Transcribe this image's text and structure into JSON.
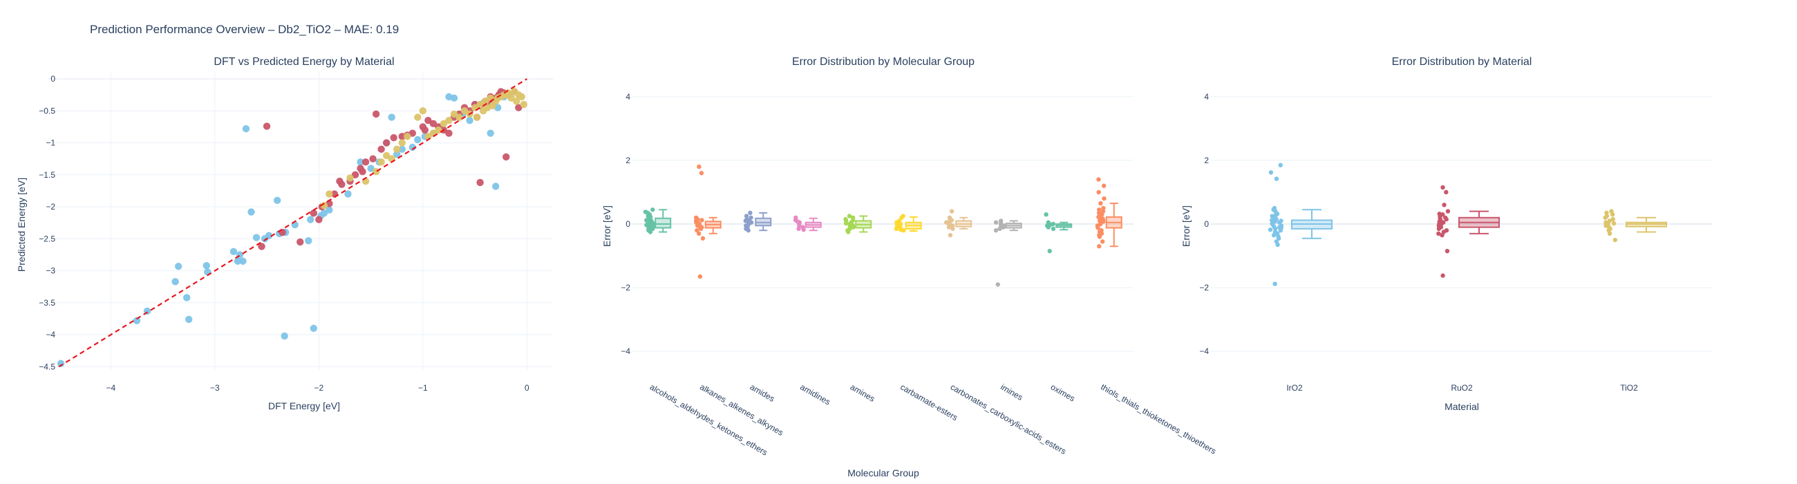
{
  "figure": {
    "title": "Prediction Performance Overview – Db2_TiO2 – MAE: 0.19"
  },
  "colors": {
    "IrO2": "#7ec4e8",
    "RuO2": "#c9566a",
    "TiO2": "#dcc46a",
    "parity_line": "#e8161c",
    "grid": "#ebf0f8",
    "zeroline": "#e4e8ef"
  },
  "chart_data": [
    {
      "type": "scatter",
      "title": "DFT vs Predicted Energy by Material",
      "xlabel": "DFT Energy [eV]",
      "ylabel": "Predicted Energy [eV]",
      "xlim": [
        -4.6,
        0.25
      ],
      "ylim": [
        -4.55,
        0.12
      ],
      "xticks": [
        -4,
        -3,
        -2,
        -1,
        0
      ],
      "xtick_labels": [
        "−4",
        "−3",
        "−2",
        "−1",
        "0"
      ],
      "yticks": [
        0,
        -0.5,
        -1,
        -1.5,
        -2,
        -2.5,
        -3,
        -3.5,
        -4,
        -4.5
      ],
      "ytick_labels": [
        "0",
        "−0.5",
        "−1",
        "−1.5",
        "−2",
        "−2.5",
        "−3",
        "−3.5",
        "−4",
        "−4.5"
      ],
      "grid": true,
      "legend": "none",
      "parity_line": {
        "x": [
          -4.5,
          0
        ],
        "y": [
          -4.5,
          0
        ]
      },
      "series": [
        {
          "material": "IrO2",
          "x": [
            -4.48,
            -3.75,
            -3.65,
            -3.38,
            -3.35,
            -3.27,
            -3.25,
            -3.08,
            -3.07,
            -2.82,
            -2.78,
            -2.76,
            -2.73,
            -2.7,
            -2.65,
            -2.6,
            -2.52,
            -2.48,
            -2.4,
            -2.38,
            -2.33,
            -2.32,
            -2.23,
            -2.1,
            -2.08,
            -2.05,
            -1.98,
            -1.95,
            -1.9,
            -1.72,
            -1.6,
            -1.5,
            -1.42,
            -1.35,
            -1.3,
            -1.25,
            -1.2,
            -1.1,
            -1.05,
            -0.98,
            -0.9,
            -0.82,
            -0.75,
            -0.7,
            -0.62,
            -0.55,
            -0.5,
            -0.42,
            -0.35,
            -0.3,
            -0.28,
            -0.22
          ],
          "y": [
            -4.45,
            -3.78,
            -3.63,
            -3.17,
            -2.93,
            -3.42,
            -3.76,
            -2.92,
            -3.02,
            -2.7,
            -2.85,
            -2.75,
            -2.85,
            -0.78,
            -2.08,
            -2.48,
            -2.5,
            -2.45,
            -1.9,
            -2.42,
            -4.02,
            -2.4,
            -2.28,
            -2.53,
            -2.2,
            -3.9,
            -2.14,
            -2.1,
            -2.05,
            -1.8,
            -1.3,
            -1.4,
            -1.3,
            -1.0,
            -0.6,
            -1.18,
            -1.1,
            -1.07,
            -0.95,
            -0.9,
            -0.85,
            -0.75,
            -0.28,
            -0.3,
            -0.55,
            -0.65,
            -0.4,
            -0.38,
            -0.85,
            -1.68,
            -0.45,
            -0.28
          ]
        },
        {
          "material": "RuO2",
          "x": [
            -2.5,
            -2.35,
            -2.18,
            -2.05,
            -2.0,
            -1.97,
            -1.85,
            -1.8,
            -1.7,
            -1.65,
            -1.6,
            -1.55,
            -1.48,
            -1.4,
            -1.35,
            -1.28,
            -1.2,
            -1.15,
            -1.1,
            -1.0,
            -0.98,
            -0.95,
            -0.9,
            -0.85,
            -0.8,
            -0.75,
            -0.7,
            -0.65,
            -0.6,
            -0.55,
            -0.5,
            -0.48,
            -0.45,
            -0.4,
            -0.38,
            -0.35,
            -0.33,
            -0.3,
            -0.27,
            -0.25,
            -0.22,
            -0.2,
            -0.18,
            -0.12,
            -0.08,
            -0.45,
            -1.45,
            -1.58,
            -1.78,
            -1.9,
            -2.55
          ],
          "y": [
            -0.74,
            -2.4,
            -2.55,
            -2.1,
            -2.2,
            -2.0,
            -1.8,
            -1.6,
            -1.6,
            -1.5,
            -1.4,
            -1.3,
            -1.25,
            -1.1,
            -1.0,
            -0.92,
            -0.9,
            -0.88,
            -0.85,
            -0.75,
            -0.8,
            -0.65,
            -0.7,
            -0.75,
            -0.8,
            -0.85,
            -0.6,
            -0.55,
            -0.45,
            -0.5,
            -0.4,
            -0.6,
            -0.42,
            -0.35,
            -0.38,
            -0.28,
            -0.32,
            -0.3,
            -0.25,
            -0.2,
            -0.22,
            -1.22,
            -0.25,
            -0.2,
            -0.45,
            -1.62,
            -0.55,
            -1.45,
            -1.65,
            -1.95,
            -2.62
          ]
        },
        {
          "material": "TiO2",
          "x": [
            -1.95,
            -1.9,
            -1.7,
            -1.55,
            -1.45,
            -1.4,
            -1.35,
            -1.3,
            -1.25,
            -1.2,
            -1.15,
            -1.05,
            -1.0,
            -0.95,
            -0.9,
            -0.85,
            -0.8,
            -0.75,
            -0.7,
            -0.65,
            -0.6,
            -0.55,
            -0.5,
            -0.48,
            -0.45,
            -0.42,
            -0.4,
            -0.38,
            -0.35,
            -0.33,
            -0.3,
            -0.28,
            -0.25,
            -0.22,
            -0.2,
            -0.18,
            -0.15,
            -0.12,
            -0.1,
            -0.08,
            -0.05,
            -0.03
          ],
          "y": [
            -1.98,
            -1.8,
            -1.55,
            -1.6,
            -1.45,
            -1.3,
            -1.2,
            -1.25,
            -1.1,
            -1.0,
            -0.9,
            -0.6,
            -0.5,
            -0.9,
            -0.85,
            -0.8,
            -0.7,
            -0.65,
            -0.55,
            -0.6,
            -0.5,
            -0.55,
            -0.45,
            -0.6,
            -0.4,
            -0.5,
            -0.35,
            -0.45,
            -0.3,
            -0.42,
            -0.35,
            -0.3,
            -0.28,
            -0.25,
            -0.25,
            -0.22,
            -0.3,
            -0.2,
            -0.35,
            -0.25,
            -0.28,
            -0.4
          ]
        }
      ]
    },
    {
      "type": "box",
      "title": "Error Distribution by Molecular Group",
      "xlabel": "Molecular Group",
      "ylabel": "Error [eV]",
      "ylim": [
        -4.8,
        4.8
      ],
      "yticks": [
        -4,
        -2,
        0,
        2,
        4
      ],
      "ytick_labels": [
        "−4",
        "−2",
        "0",
        "2",
        "4"
      ],
      "grid": true,
      "legend": "none",
      "categories": [
        "alcohols_aldehydes_ketones_ethers",
        "alkanes_alkenes_alkynes",
        "amides",
        "amidines",
        "amines",
        "carbamate-esters",
        "carbonates_carboxylic-acids_esters",
        "imines",
        "oximes",
        "thiols_thials_thioketones_thioethers"
      ],
      "colors": [
        "#66c2a5",
        "#fc8d62",
        "#8da0cb",
        "#e78ac3",
        "#a6d854",
        "#ffd92f",
        "#e5c494",
        "#b3b3b3",
        "#66c2a5",
        "#fc8d62"
      ],
      "boxes": [
        {
          "lower": -0.25,
          "q1": -0.12,
          "median": 0.0,
          "q3": 0.18,
          "upper": 0.45,
          "points": [
            0.45,
            0.38,
            0.3,
            0.25,
            0.2,
            0.15,
            0.12,
            0.08,
            0.05,
            0.02,
            0.0,
            -0.03,
            -0.06,
            -0.1,
            -0.12,
            -0.15,
            -0.2,
            -0.25,
            0.35,
            0.1,
            -0.08,
            0.22,
            -0.18
          ]
        },
        {
          "lower": -0.3,
          "q1": -0.12,
          "median": -0.02,
          "q3": 0.08,
          "upper": 0.2,
          "points": [
            1.8,
            1.6,
            -1.65,
            -0.45,
            -0.3,
            -0.2,
            -0.15,
            -0.1,
            -0.05,
            0.0,
            0.05,
            0.1,
            0.15,
            0.2,
            0.12,
            -0.08,
            0.02
          ]
        },
        {
          "lower": -0.2,
          "q1": -0.05,
          "median": 0.05,
          "q3": 0.18,
          "upper": 0.35,
          "points": [
            0.35,
            0.25,
            0.2,
            0.15,
            0.1,
            0.05,
            0.0,
            -0.05,
            -0.1,
            -0.15,
            -0.2,
            0.12,
            0.08
          ]
        },
        {
          "lower": -0.2,
          "q1": -0.1,
          "median": -0.03,
          "q3": 0.05,
          "upper": 0.18,
          "points": [
            0.2,
            0.12,
            0.05,
            0.0,
            -0.05,
            -0.1,
            -0.15,
            -0.18,
            0.08
          ]
        },
        {
          "lower": -0.25,
          "q1": -0.12,
          "median": -0.02,
          "q3": 0.1,
          "upper": 0.25,
          "points": [
            0.25,
            0.2,
            0.15,
            0.1,
            0.05,
            0.0,
            -0.05,
            -0.1,
            -0.15,
            -0.2,
            -0.25,
            0.12,
            -0.08,
            0.02
          ]
        },
        {
          "lower": -0.22,
          "q1": -0.15,
          "median": -0.05,
          "q3": 0.05,
          "upper": 0.22,
          "points": [
            0.25,
            0.2,
            0.1,
            0.05,
            0.0,
            -0.05,
            -0.1,
            -0.15,
            -0.2,
            -0.18,
            0.02
          ]
        },
        {
          "lower": -0.15,
          "q1": -0.08,
          "median": 0.0,
          "q3": 0.1,
          "upper": 0.2,
          "points": [
            0.4,
            0.2,
            0.1,
            0.05,
            0.0,
            -0.05,
            -0.1,
            -0.15,
            -0.35,
            0.12,
            -0.02
          ]
        },
        {
          "lower": -0.2,
          "q1": -0.12,
          "median": -0.05,
          "q3": 0.02,
          "upper": 0.1,
          "points": [
            0.1,
            0.05,
            0.0,
            -0.05,
            -0.1,
            -0.15,
            -0.2,
            -1.9,
            0.02,
            -0.08
          ]
        },
        {
          "lower": -0.18,
          "q1": -0.1,
          "median": -0.05,
          "q3": 0.0,
          "upper": 0.05,
          "points": [
            0.3,
            0.05,
            0.0,
            -0.05,
            -0.1,
            -0.15,
            -0.85,
            -0.02
          ]
        },
        {
          "lower": -0.7,
          "q1": -0.12,
          "median": 0.05,
          "q3": 0.22,
          "upper": 0.65,
          "points": [
            1.4,
            1.2,
            1.0,
            0.8,
            0.65,
            0.5,
            0.4,
            0.3,
            0.22,
            0.15,
            0.1,
            0.05,
            0.0,
            -0.05,
            -0.12,
            -0.2,
            -0.3,
            -0.4,
            -0.55,
            -0.7,
            0.35,
            -0.25,
            0.08,
            0.18,
            -0.08,
            0.45,
            -0.35
          ]
        }
      ]
    },
    {
      "type": "box",
      "title": "Error Distribution by Material",
      "xlabel": "Material",
      "ylabel": "Error [eV]",
      "ylim": [
        -4.8,
        4.8
      ],
      "yticks": [
        -4,
        -2,
        0,
        2,
        4
      ],
      "ytick_labels": [
        "−4",
        "−2",
        "0",
        "2",
        "4"
      ],
      "grid": true,
      "legend": "none",
      "categories": [
        "IrO2",
        "RuO2",
        "TiO2"
      ],
      "colors": [
        "#7ec4e8",
        "#c9566a",
        "#dcc46a"
      ],
      "boxes": [
        {
          "lower": -0.45,
          "q1": -0.15,
          "median": 0.0,
          "q3": 0.12,
          "upper": 0.45,
          "points": [
            1.85,
            1.62,
            1.42,
            0.5,
            0.4,
            0.32,
            0.25,
            0.2,
            0.15,
            0.1,
            0.05,
            0.0,
            -0.05,
            -0.1,
            -0.15,
            -0.2,
            -0.25,
            -0.3,
            -0.35,
            -0.45,
            -0.55,
            -0.65,
            -1.88,
            0.12,
            -0.08,
            0.28,
            -0.18,
            0.02,
            0.08,
            -0.12,
            -0.4,
            0.45
          ]
        },
        {
          "lower": -0.3,
          "q1": -0.1,
          "median": 0.05,
          "q3": 0.2,
          "upper": 0.4,
          "points": [
            1.15,
            1.0,
            0.6,
            0.4,
            0.3,
            0.25,
            0.2,
            0.15,
            0.1,
            0.05,
            0.0,
            -0.05,
            -0.1,
            -0.15,
            -0.2,
            -0.25,
            -0.35,
            -0.85,
            -1.62,
            0.18,
            -0.02,
            0.08,
            0.32,
            -0.3
          ]
        },
        {
          "lower": -0.25,
          "q1": -0.08,
          "median": 0.0,
          "q3": 0.05,
          "upper": 0.2,
          "points": [
            0.4,
            0.35,
            0.3,
            0.25,
            0.2,
            0.15,
            0.1,
            0.05,
            0.0,
            -0.05,
            -0.1,
            -0.15,
            -0.2,
            -0.3,
            -0.5,
            0.02,
            -0.02
          ]
        }
      ]
    }
  ]
}
